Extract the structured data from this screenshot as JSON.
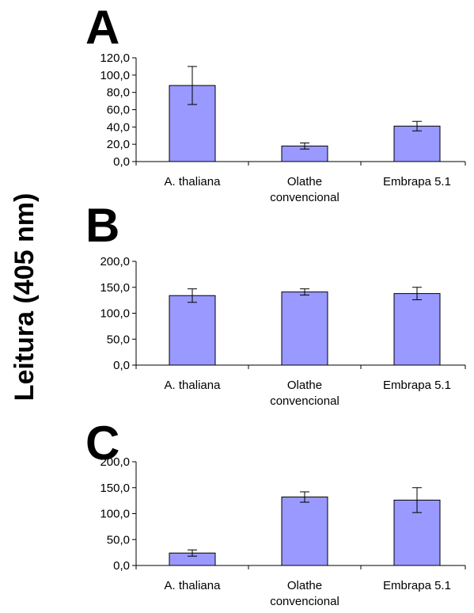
{
  "y_axis_label": "Leitura (405 nm)",
  "colors": {
    "bar": "#9999ff",
    "axis": "#000000"
  },
  "chart_data": [
    {
      "type": "bar",
      "title": "A",
      "categories": [
        "A. thaliana",
        "Olathe convencional",
        "Embrapa 5.1"
      ],
      "category_lines": [
        [
          "A. thaliana"
        ],
        [
          "Olathe",
          "convencional"
        ],
        [
          "Embrapa 5.1"
        ]
      ],
      "values": [
        88,
        18,
        41
      ],
      "errors": [
        22,
        3.5,
        5.5
      ],
      "ylim": [
        0,
        120
      ],
      "yticks": [
        0,
        20,
        40,
        60,
        80,
        100,
        120
      ],
      "ytick_labels": [
        "0,0",
        "20,0",
        "40,0",
        "60,0",
        "80,0",
        "100,0",
        "120,0"
      ],
      "grid": false,
      "legend": "none"
    },
    {
      "type": "bar",
      "title": "B",
      "categories": [
        "A. thaliana",
        "Olathe convencional",
        "Embrapa 5.1"
      ],
      "category_lines": [
        [
          "A. thaliana"
        ],
        [
          "Olathe",
          "convencional"
        ],
        [
          "Embrapa 5.1"
        ]
      ],
      "values": [
        134,
        141,
        138
      ],
      "errors": [
        13,
        6,
        12
      ],
      "ylim": [
        0,
        200
      ],
      "yticks": [
        0,
        50,
        100,
        150,
        200
      ],
      "ytick_labels": [
        "0,0",
        "50,0",
        "100,0",
        "150,0",
        "200,0"
      ],
      "grid": false,
      "legend": "none"
    },
    {
      "type": "bar",
      "title": "C",
      "categories": [
        "A. thaliana",
        "Olathe convencional",
        "Embrapa 5.1"
      ],
      "category_lines": [
        [
          "A. thaliana"
        ],
        [
          "Olathe",
          "convencional"
        ],
        [
          "Embrapa 5.1"
        ]
      ],
      "values": [
        24,
        132,
        126
      ],
      "errors": [
        6,
        10,
        24
      ],
      "ylim": [
        0,
        200
      ],
      "yticks": [
        0,
        50,
        100,
        150,
        200
      ],
      "ytick_labels": [
        "0,0",
        "50,0",
        "100,0",
        "150,0",
        "200,0"
      ],
      "grid": false,
      "legend": "none"
    }
  ]
}
